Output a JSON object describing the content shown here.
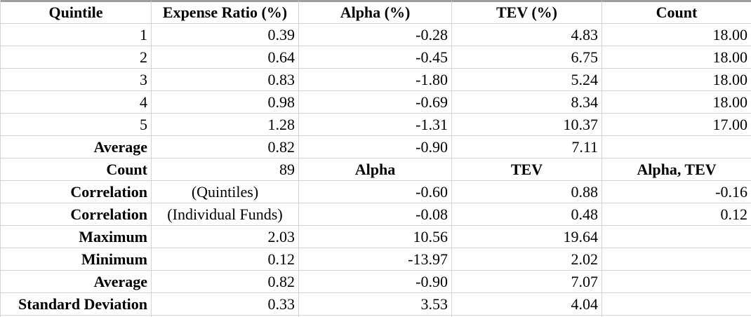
{
  "colors": {
    "grid_line": "#d4d4d4",
    "top_border": "#9e9e9e",
    "text": "#000000",
    "background": "#ffffff"
  },
  "table": {
    "columns": [
      {
        "key": "quintile",
        "label": "Quintile"
      },
      {
        "key": "expense-ratio",
        "label": "Expense Ratio (%)"
      },
      {
        "key": "alpha",
        "label": "Alpha (%)"
      },
      {
        "key": "tev",
        "label": "TEV (%)"
      },
      {
        "key": "count",
        "label": "Count"
      }
    ],
    "rows": [
      {
        "cells": [
          {
            "text": "1",
            "align": "right"
          },
          {
            "text": "0.39",
            "align": "right"
          },
          {
            "text": "-0.28",
            "align": "right"
          },
          {
            "text": "4.83",
            "align": "right"
          },
          {
            "text": "18.00",
            "align": "right"
          }
        ]
      },
      {
        "cells": [
          {
            "text": "2",
            "align": "right"
          },
          {
            "text": "0.64",
            "align": "right"
          },
          {
            "text": "-0.45",
            "align": "right"
          },
          {
            "text": "6.75",
            "align": "right"
          },
          {
            "text": "18.00",
            "align": "right"
          }
        ]
      },
      {
        "cells": [
          {
            "text": "3",
            "align": "right"
          },
          {
            "text": "0.83",
            "align": "right"
          },
          {
            "text": "-1.80",
            "align": "right"
          },
          {
            "text": "5.24",
            "align": "right"
          },
          {
            "text": "18.00",
            "align": "right"
          }
        ]
      },
      {
        "cells": [
          {
            "text": "4",
            "align": "right"
          },
          {
            "text": "0.98",
            "align": "right"
          },
          {
            "text": "-0.69",
            "align": "right"
          },
          {
            "text": "8.34",
            "align": "right"
          },
          {
            "text": "18.00",
            "align": "right"
          }
        ]
      },
      {
        "cells": [
          {
            "text": "5",
            "align": "right"
          },
          {
            "text": "1.28",
            "align": "right"
          },
          {
            "text": "-1.31",
            "align": "right"
          },
          {
            "text": "10.37",
            "align": "right"
          },
          {
            "text": "17.00",
            "align": "right"
          }
        ]
      },
      {
        "cells": [
          {
            "text": "Average",
            "align": "right",
            "bold": true
          },
          {
            "text": "0.82",
            "align": "right"
          },
          {
            "text": "-0.90",
            "align": "right"
          },
          {
            "text": "7.11",
            "align": "right"
          },
          {
            "text": "",
            "align": "right"
          }
        ]
      },
      {
        "cells": [
          {
            "text": "Count",
            "align": "right",
            "bold": true
          },
          {
            "text": "89",
            "align": "right"
          },
          {
            "text": "Alpha",
            "align": "center",
            "bold": true
          },
          {
            "text": "TEV",
            "align": "center",
            "bold": true
          },
          {
            "text": "Alpha, TEV",
            "align": "center",
            "bold": true
          }
        ]
      },
      {
        "cells": [
          {
            "text": "Correlation",
            "align": "right",
            "bold": true
          },
          {
            "text": "(Quintiles)",
            "align": "center"
          },
          {
            "text": "-0.60",
            "align": "right"
          },
          {
            "text": "0.88",
            "align": "right"
          },
          {
            "text": "-0.16",
            "align": "right"
          }
        ]
      },
      {
        "cells": [
          {
            "text": "Correlation",
            "align": "right",
            "bold": true
          },
          {
            "text": "(Individual Funds)",
            "align": "center"
          },
          {
            "text": "-0.08",
            "align": "right"
          },
          {
            "text": "0.48",
            "align": "right"
          },
          {
            "text": "0.12",
            "align": "right"
          }
        ]
      },
      {
        "cells": [
          {
            "text": "Maximum",
            "align": "right",
            "bold": true
          },
          {
            "text": "2.03",
            "align": "right"
          },
          {
            "text": "10.56",
            "align": "right"
          },
          {
            "text": "19.64",
            "align": "right"
          },
          {
            "text": "",
            "align": "right"
          }
        ]
      },
      {
        "cells": [
          {
            "text": "Minimum",
            "align": "right",
            "bold": true
          },
          {
            "text": "0.12",
            "align": "right"
          },
          {
            "text": "-13.97",
            "align": "right"
          },
          {
            "text": "2.02",
            "align": "right"
          },
          {
            "text": "",
            "align": "right"
          }
        ]
      },
      {
        "cells": [
          {
            "text": "Average",
            "align": "right",
            "bold": true
          },
          {
            "text": "0.82",
            "align": "right"
          },
          {
            "text": "-0.90",
            "align": "right"
          },
          {
            "text": "7.07",
            "align": "right"
          },
          {
            "text": "",
            "align": "right"
          }
        ]
      },
      {
        "cells": [
          {
            "text": "Standard Deviation",
            "align": "right",
            "bold": true
          },
          {
            "text": "0.33",
            "align": "right"
          },
          {
            "text": "3.53",
            "align": "right"
          },
          {
            "text": "4.04",
            "align": "right"
          },
          {
            "text": "",
            "align": "right"
          }
        ]
      }
    ]
  }
}
